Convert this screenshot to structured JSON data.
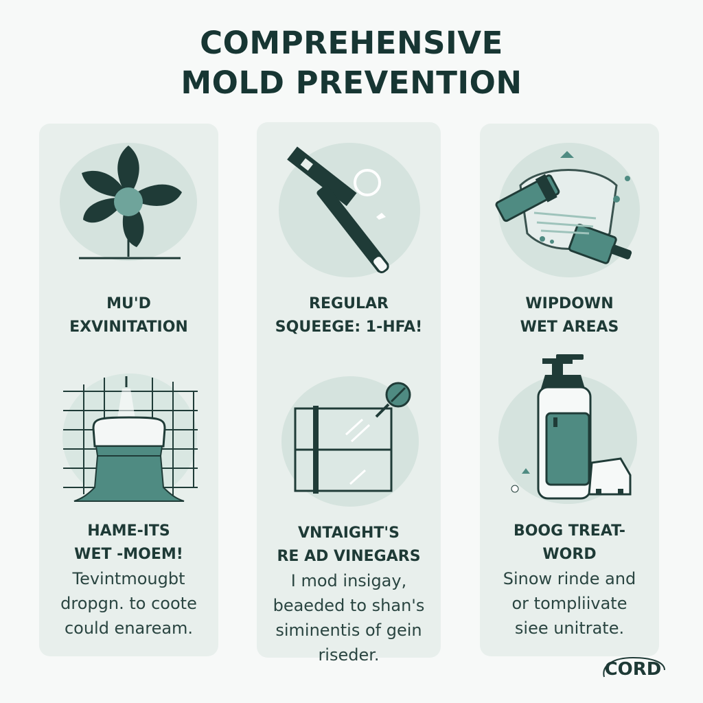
{
  "title": {
    "line1": "COMPREHENSIVE",
    "line2": "MOLD PREVENTION"
  },
  "colors": {
    "background": "#f7f9f8",
    "panel": "#e8efec",
    "disc": "#d5e3de",
    "dark_green": "#1f3b37",
    "teal": "#4f8b82",
    "light_teal": "#9ec3bb"
  },
  "cards": [
    {
      "icon": "flower-fan-icon",
      "label_line1": "MU'D",
      "label_line2": "EXVINITATION"
    },
    {
      "icon": "squeegee-icon",
      "label_line1": "REGULAR",
      "label_line2": "SQUEEGE: 1-HFA!"
    },
    {
      "icon": "wipe-roller-icon",
      "label_line1": "WIPDOWN",
      "label_line2": "WET AREAS"
    },
    {
      "icon": "shower-cap-icon",
      "label_line1": "HAME-ITS",
      "label_line2": "WET -MOEM!",
      "desc": [
        "Tevintmougbt",
        "dropgn. to coote",
        "could enaream."
      ]
    },
    {
      "icon": "glass-door-spray-icon",
      "label_line1": "VNTAIGHT'S",
      "label_line2": "RE AD VINEGARS",
      "desc": [
        "I mod insigay,",
        "beaeded to shan's",
        "siminentis of gein",
        "riseder."
      ]
    },
    {
      "icon": "bottle-icon",
      "label_line1": "BOOG TREAT-",
      "label_line2": "WORD",
      "desc": [
        "Sinow rinde and",
        "or tompliivate",
        "siee unitrate."
      ]
    }
  ],
  "logo": {
    "text": "CORD"
  }
}
